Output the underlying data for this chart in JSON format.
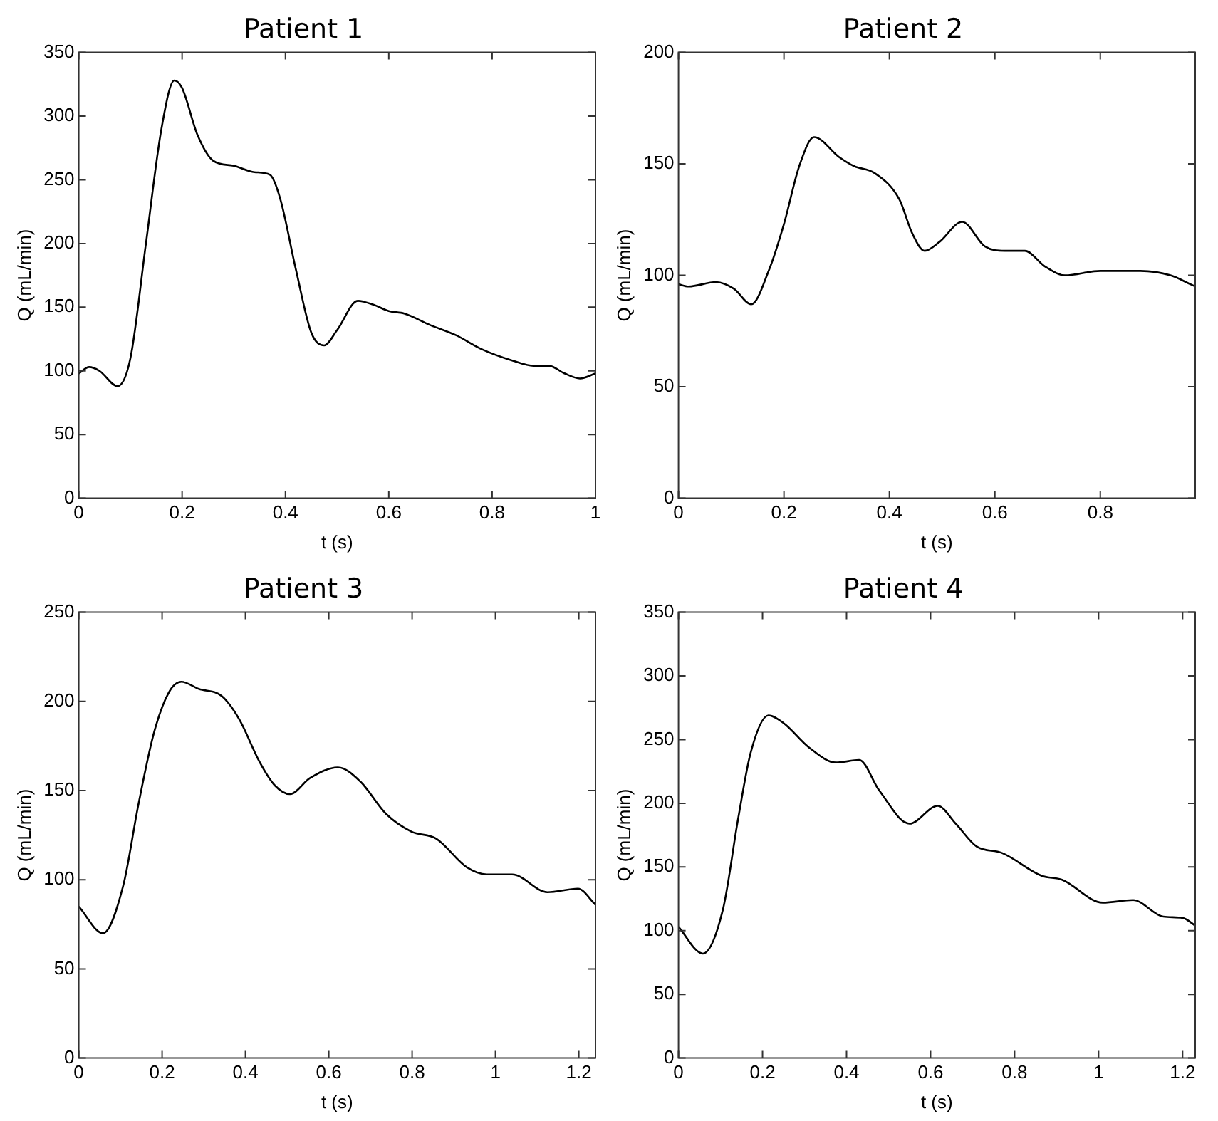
{
  "chart_data": [
    {
      "type": "line",
      "title": "Patient 1",
      "xlabel": "t (s)",
      "ylabel": "Q (mL/min)",
      "marker": "none",
      "line_style": "solid",
      "xlim": [
        0,
        1
      ],
      "xticks": [
        0,
        0.2,
        0.4,
        0.6,
        0.8,
        1
      ],
      "ylim": [
        0,
        350
      ],
      "yticks": [
        0,
        50,
        100,
        150,
        200,
        250,
        300,
        350
      ],
      "x": [
        0,
        0.02,
        0.04,
        0.075,
        0.1,
        0.13,
        0.16,
        0.185,
        0.2,
        0.23,
        0.26,
        0.3,
        0.34,
        0.37,
        0.39,
        0.42,
        0.45,
        0.475,
        0.5,
        0.54,
        0.57,
        0.6,
        0.63,
        0.68,
        0.73,
        0.78,
        0.84,
        0.88,
        0.91,
        0.94,
        0.97,
        1
      ],
      "series": [
        {
          "color": "#000000",
          "values": [
            98,
            103,
            100,
            88,
            110,
            200,
            290,
            328,
            322,
            285,
            265,
            261,
            256,
            254,
            235,
            180,
            130,
            120,
            132,
            155,
            152,
            147,
            145,
            136,
            128,
            117,
            108,
            104,
            104,
            98,
            94,
            98
          ]
        }
      ]
    },
    {
      "type": "line",
      "title": "Patient 2",
      "xlabel": "t (s)",
      "ylabel": "Q (mL/min)",
      "marker": "none",
      "line_style": "solid",
      "xlim": [
        0,
        0.98
      ],
      "xticks": [
        0,
        0.2,
        0.4,
        0.6,
        0.8
      ],
      "ylim": [
        0,
        200
      ],
      "yticks": [
        0,
        50,
        100,
        150,
        200
      ],
      "x": [
        0,
        0.019,
        0.071,
        0.105,
        0.138,
        0.171,
        0.2,
        0.229,
        0.257,
        0.305,
        0.333,
        0.371,
        0.419,
        0.443,
        0.467,
        0.495,
        0.538,
        0.581,
        0.619,
        0.657,
        0.695,
        0.733,
        0.8,
        0.876,
        0.933,
        0.971,
        0.98
      ],
      "series": [
        {
          "color": "#000000",
          "values": [
            96,
            95,
            97,
            94,
            87,
            102,
            123,
            149,
            162,
            153,
            149,
            146,
            134,
            119,
            111,
            115,
            124,
            113,
            111,
            111,
            104,
            100,
            102,
            102,
            100,
            96,
            95
          ]
        }
      ]
    },
    {
      "type": "line",
      "title": "Patient 3",
      "xlabel": "t (s)",
      "ylabel": "Q (mL/min)",
      "marker": "none",
      "line_style": "solid",
      "xlim": [
        0,
        1.24
      ],
      "xticks": [
        0,
        0.2,
        0.4,
        0.6,
        0.8,
        1,
        1.2
      ],
      "ylim": [
        0,
        250
      ],
      "yticks": [
        0,
        50,
        100,
        150,
        200,
        250
      ],
      "x": [
        0,
        0.058,
        0.107,
        0.143,
        0.18,
        0.216,
        0.246,
        0.288,
        0.343,
        0.385,
        0.434,
        0.47,
        0.507,
        0.555,
        0.622,
        0.676,
        0.737,
        0.798,
        0.858,
        0.931,
        0.979,
        1.04,
        1.125,
        1.198,
        1.24
      ],
      "series": [
        {
          "color": "#000000",
          "values": [
            85,
            70,
            97,
            142,
            182,
            205,
            211,
            207,
            203,
            190,
            166,
            153,
            148,
            157,
            163,
            155,
            137,
            127,
            123,
            107,
            103,
            103,
            93,
            95,
            86
          ]
        }
      ]
    },
    {
      "type": "line",
      "title": "Patient 4",
      "xlabel": "t (s)",
      "ylabel": "Q (mL/min)",
      "marker": "none",
      "line_style": "solid",
      "xlim": [
        0,
        1.23
      ],
      "xticks": [
        0,
        0.2,
        0.4,
        0.6,
        0.8,
        1,
        1.2
      ],
      "ylim": [
        0,
        350
      ],
      "yticks": [
        0,
        50,
        100,
        150,
        200,
        250,
        300,
        350
      ],
      "x": [
        0,
        0.058,
        0.106,
        0.142,
        0.172,
        0.214,
        0.25,
        0.31,
        0.375,
        0.43,
        0.478,
        0.55,
        0.617,
        0.66,
        0.71,
        0.77,
        0.865,
        0.913,
        1.01,
        1.082,
        1.154,
        1.2,
        1.23
      ],
      "series": [
        {
          "color": "#000000",
          "values": [
            103,
            82,
            117,
            188,
            240,
            269,
            263,
            244,
            232,
            234,
            210,
            184,
            198,
            184,
            166,
            161,
            143,
            140,
            122,
            124,
            111,
            110,
            104
          ]
        }
      ]
    }
  ]
}
